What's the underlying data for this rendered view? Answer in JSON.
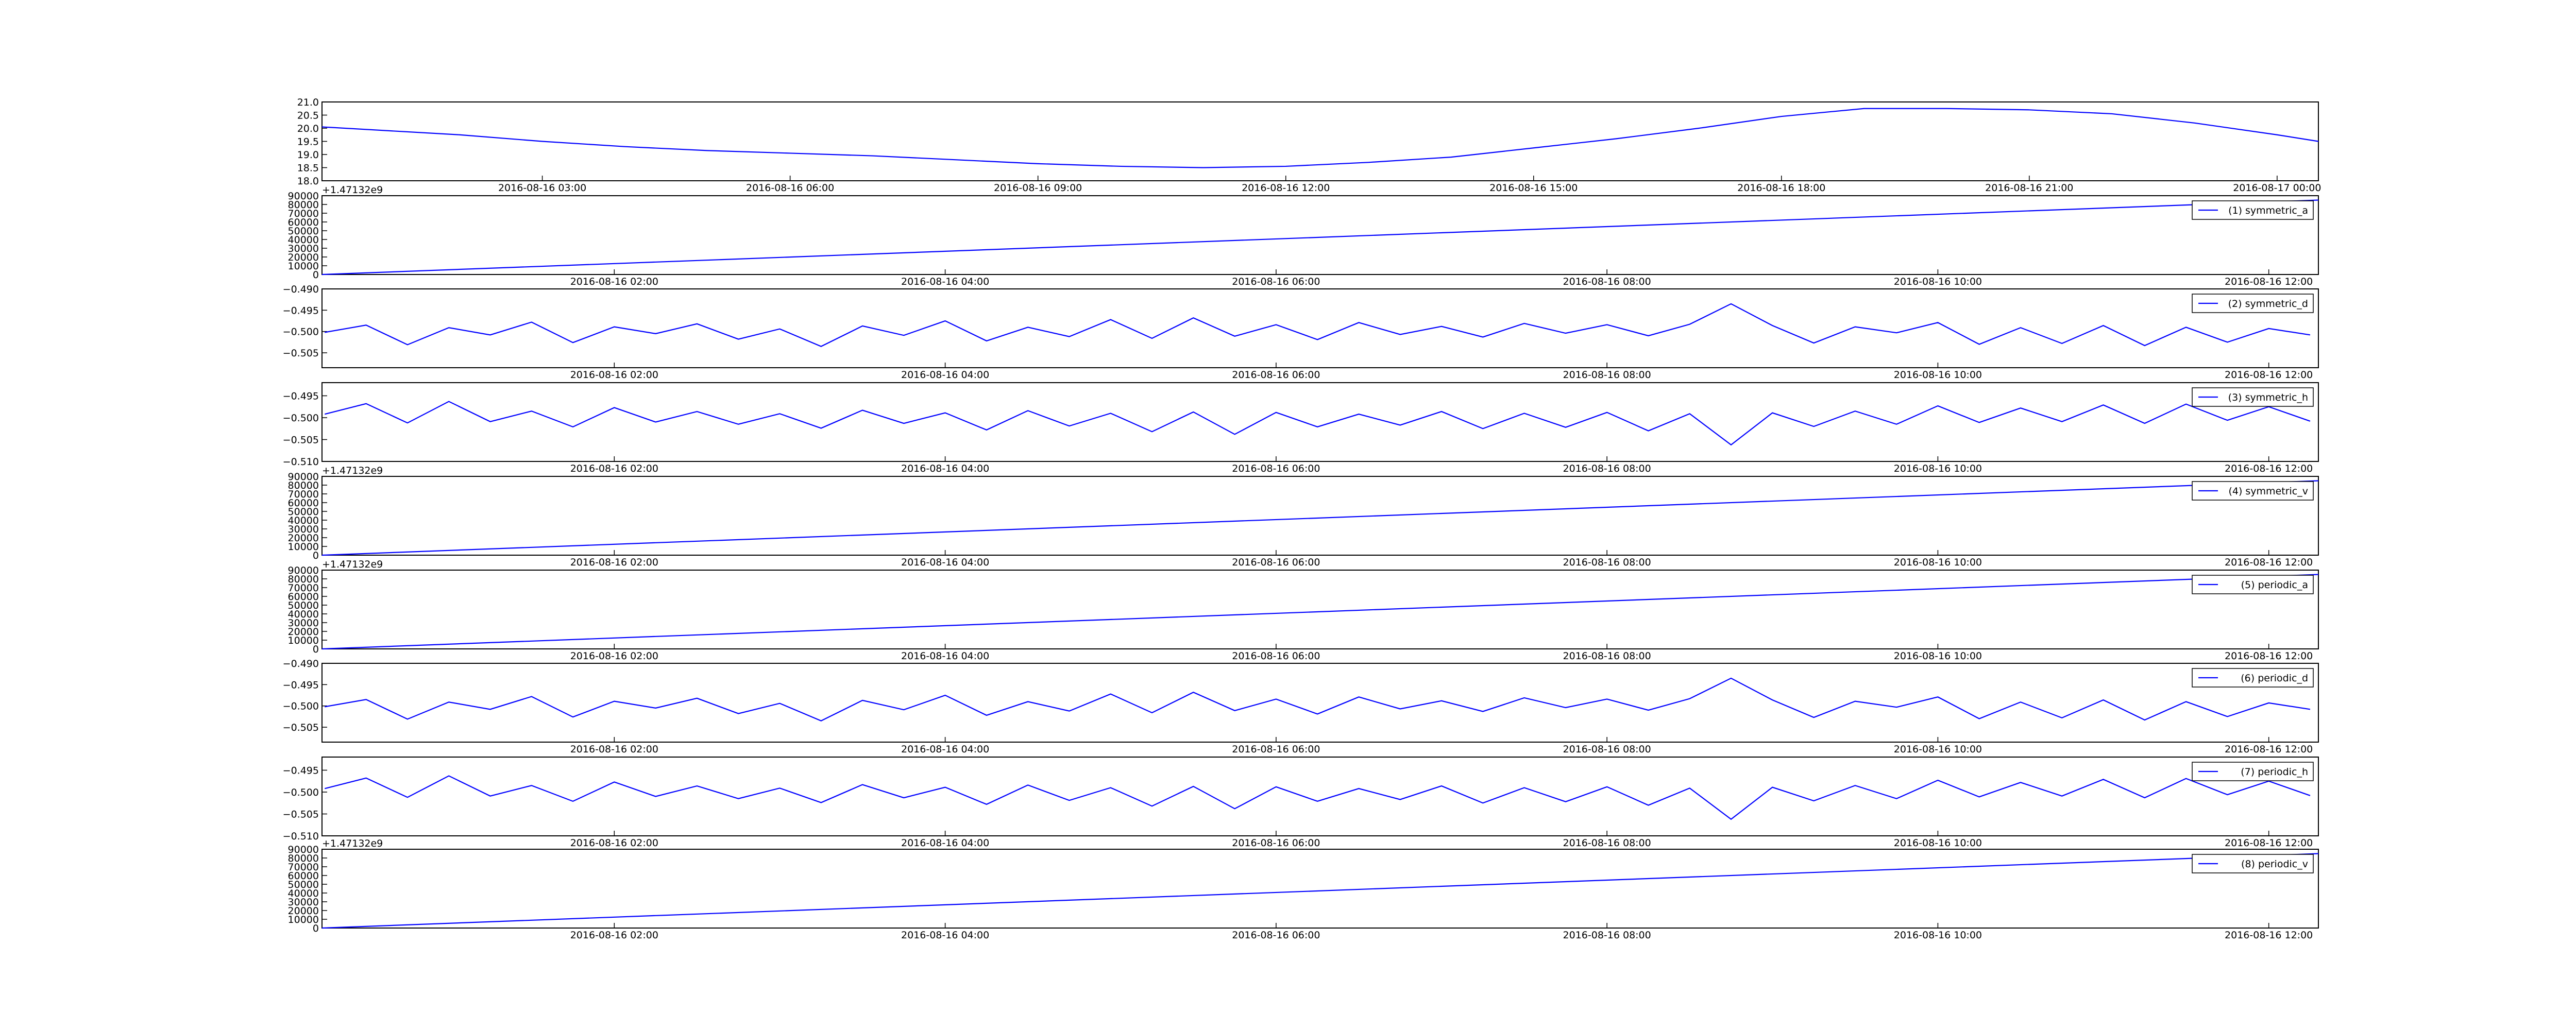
{
  "chart_data": [
    {
      "type": "line",
      "color": "#0000ff",
      "x": [
        "2016-08-16 00:20",
        "2016-08-16 02:00",
        "2016-08-16 03:00",
        "2016-08-16 04:00",
        "2016-08-16 05:00",
        "2016-08-16 06:00",
        "2016-08-16 07:00",
        "2016-08-16 08:00",
        "2016-08-16 09:00",
        "2016-08-16 10:00",
        "2016-08-16 11:00",
        "2016-08-16 12:00",
        "2016-08-16 13:00",
        "2016-08-16 14:00",
        "2016-08-16 15:00",
        "2016-08-16 16:00",
        "2016-08-16 17:00",
        "2016-08-16 18:00",
        "2016-08-16 19:00",
        "2016-08-16 20:00",
        "2016-08-16 21:00",
        "2016-08-16 22:00",
        "2016-08-16 23:00",
        "2016-08-17 00:00",
        "2016-08-17 00:30"
      ],
      "values": [
        20.05,
        19.75,
        19.5,
        19.3,
        19.15,
        19.05,
        18.95,
        18.8,
        18.65,
        18.55,
        18.5,
        18.55,
        18.7,
        18.9,
        19.25,
        19.6,
        20.0,
        20.45,
        20.75,
        20.75,
        20.7,
        20.55,
        20.2,
        19.75,
        19.5
      ],
      "xlim": [
        "2016-08-16 00:20",
        "2016-08-17 00:30"
      ],
      "xticks": [
        "2016-08-16 03:00",
        "2016-08-16 06:00",
        "2016-08-16 09:00",
        "2016-08-16 12:00",
        "2016-08-16 15:00",
        "2016-08-16 18:00",
        "2016-08-16 21:00",
        "2016-08-17 00:00"
      ],
      "ylim": [
        18.0,
        21.0
      ],
      "yticks": [
        {
          "value": 18,
          "label": "18.0"
        },
        {
          "value": 18.5,
          "label": "18.5"
        },
        {
          "value": 19,
          "label": "19.0"
        },
        {
          "value": 19.5,
          "label": "19.5"
        },
        {
          "value": 20,
          "label": "20.0"
        },
        {
          "value": 20.5,
          "label": "20.5"
        },
        {
          "value": 21,
          "label": "21.0"
        }
      ]
    },
    {
      "type": "line",
      "offset_text": "+1.47132e9",
      "legend": "upper right",
      "x": [
        "2016-08-16 00:14",
        "2016-08-16 12:18"
      ],
      "series": [
        {
          "name": "(1) symmetric_a",
          "color": "#0000ff",
          "values": [
            0,
            85000
          ]
        }
      ],
      "xlim": [
        "2016-08-16 00:14",
        "2016-08-16 12:18"
      ],
      "xticks": [
        "2016-08-16 02:00",
        "2016-08-16 04:00",
        "2016-08-16 06:00",
        "2016-08-16 08:00",
        "2016-08-16 10:00",
        "2016-08-16 12:00"
      ],
      "ylim": [
        0,
        90000
      ],
      "yticks": [
        0,
        10000,
        20000,
        30000,
        40000,
        50000,
        60000,
        70000,
        80000,
        90000
      ]
    },
    {
      "type": "line",
      "legend": "upper right",
      "x": [
        "2016-08-16 00:15",
        "2016-08-16 00:30",
        "2016-08-16 00:45",
        "2016-08-16 01:00",
        "2016-08-16 01:15",
        "2016-08-16 01:30",
        "2016-08-16 01:45",
        "2016-08-16 02:00",
        "2016-08-16 02:15",
        "2016-08-16 02:30",
        "2016-08-16 02:45",
        "2016-08-16 03:00",
        "2016-08-16 03:15",
        "2016-08-16 03:30",
        "2016-08-16 03:45",
        "2016-08-16 04:00",
        "2016-08-16 04:15",
        "2016-08-16 04:30",
        "2016-08-16 04:45",
        "2016-08-16 05:00",
        "2016-08-16 05:15",
        "2016-08-16 05:30",
        "2016-08-16 05:45",
        "2016-08-16 06:00",
        "2016-08-16 06:15",
        "2016-08-16 06:30",
        "2016-08-16 06:45",
        "2016-08-16 07:00",
        "2016-08-16 07:15",
        "2016-08-16 07:30",
        "2016-08-16 07:45",
        "2016-08-16 08:00",
        "2016-08-16 08:15",
        "2016-08-16 08:30",
        "2016-08-16 08:45",
        "2016-08-16 09:00",
        "2016-08-16 09:15",
        "2016-08-16 09:30",
        "2016-08-16 09:45",
        "2016-08-16 10:00",
        "2016-08-16 10:15",
        "2016-08-16 10:30",
        "2016-08-16 10:45",
        "2016-08-16 11:00",
        "2016-08-16 11:15",
        "2016-08-16 11:30",
        "2016-08-16 11:45",
        "2016-08-16 12:00",
        "2016-08-16 12:15"
      ],
      "series": [
        {
          "name": "(2) symmetric_d",
          "color": "#0000ff",
          "values": [
            -0.5002,
            -0.4985,
            -0.5031,
            -0.4991,
            -0.5008,
            -0.4978,
            -0.5026,
            -0.4989,
            -0.5005,
            -0.4982,
            -0.5018,
            -0.4994,
            -0.5035,
            -0.4987,
            -0.5009,
            -0.4975,
            -0.5022,
            -0.499,
            -0.5012,
            -0.4972,
            -0.5016,
            -0.4968,
            -0.5011,
            -0.4984,
            -0.5019,
            -0.4979,
            -0.5007,
            -0.4988,
            -0.5013,
            -0.4981,
            -0.5004,
            -0.4984,
            -0.501,
            -0.4983,
            -0.4935,
            -0.4986,
            -0.5027,
            -0.4989,
            -0.5003,
            -0.4979,
            -0.503,
            -0.4991,
            -0.5028,
            -0.4986,
            -0.5033,
            -0.499,
            -0.5025,
            -0.4993,
            -0.5008
          ]
        }
      ],
      "xlim": [
        "2016-08-16 00:14",
        "2016-08-16 12:18"
      ],
      "xticks": [
        "2016-08-16 02:00",
        "2016-08-16 04:00",
        "2016-08-16 06:00",
        "2016-08-16 08:00",
        "2016-08-16 10:00",
        "2016-08-16 12:00"
      ],
      "ylim": [
        -0.5085,
        -0.49
      ],
      "yticks": [
        {
          "value": -0.505,
          "label": "−0.505"
        },
        {
          "value": -0.5,
          "label": "−0.500"
        },
        {
          "value": -0.495,
          "label": "−0.495"
        },
        {
          "value": -0.49,
          "label": "−0.490"
        }
      ]
    },
    {
      "type": "line",
      "legend": "upper right",
      "x": [
        "2016-08-16 00:15",
        "2016-08-16 00:30",
        "2016-08-16 00:45",
        "2016-08-16 01:00",
        "2016-08-16 01:15",
        "2016-08-16 01:30",
        "2016-08-16 01:45",
        "2016-08-16 02:00",
        "2016-08-16 02:15",
        "2016-08-16 02:30",
        "2016-08-16 02:45",
        "2016-08-16 03:00",
        "2016-08-16 03:15",
        "2016-08-16 03:30",
        "2016-08-16 03:45",
        "2016-08-16 04:00",
        "2016-08-16 04:15",
        "2016-08-16 04:30",
        "2016-08-16 04:45",
        "2016-08-16 05:00",
        "2016-08-16 05:15",
        "2016-08-16 05:30",
        "2016-08-16 05:45",
        "2016-08-16 06:00",
        "2016-08-16 06:15",
        "2016-08-16 06:30",
        "2016-08-16 06:45",
        "2016-08-16 07:00",
        "2016-08-16 07:15",
        "2016-08-16 07:30",
        "2016-08-16 07:45",
        "2016-08-16 08:00",
        "2016-08-16 08:15",
        "2016-08-16 08:30",
        "2016-08-16 08:45",
        "2016-08-16 09:00",
        "2016-08-16 09:15",
        "2016-08-16 09:30",
        "2016-08-16 09:45",
        "2016-08-16 10:00",
        "2016-08-16 10:15",
        "2016-08-16 10:30",
        "2016-08-16 10:45",
        "2016-08-16 11:00",
        "2016-08-16 11:15",
        "2016-08-16 11:30",
        "2016-08-16 11:45",
        "2016-08-16 12:00",
        "2016-08-16 12:15"
      ],
      "series": [
        {
          "name": "(3) symmetric_h",
          "color": "#0000ff",
          "values": [
            -0.4992,
            -0.4968,
            -0.5012,
            -0.4963,
            -0.5009,
            -0.4985,
            -0.5021,
            -0.4977,
            -0.501,
            -0.4986,
            -0.5015,
            -0.4991,
            -0.5024,
            -0.4983,
            -0.5013,
            -0.4989,
            -0.5028,
            -0.4984,
            -0.5019,
            -0.499,
            -0.5032,
            -0.4987,
            -0.5038,
            -0.4988,
            -0.5021,
            -0.4992,
            -0.5017,
            -0.4986,
            -0.5025,
            -0.499,
            -0.5022,
            -0.4988,
            -0.503,
            -0.4991,
            -0.5062,
            -0.4989,
            -0.502,
            -0.4985,
            -0.5015,
            -0.4973,
            -0.5011,
            -0.4978,
            -0.5009,
            -0.4971,
            -0.5013,
            -0.4969,
            -0.5006,
            -0.4975,
            -0.5008
          ]
        }
      ],
      "xlim": [
        "2016-08-16 00:14",
        "2016-08-16 12:18"
      ],
      "xticks": [
        "2016-08-16 02:00",
        "2016-08-16 04:00",
        "2016-08-16 06:00",
        "2016-08-16 08:00",
        "2016-08-16 10:00",
        "2016-08-16 12:00"
      ],
      "ylim": [
        -0.51,
        -0.492
      ],
      "yticks": [
        {
          "value": -0.51,
          "label": "−0.510"
        },
        {
          "value": -0.505,
          "label": "−0.505"
        },
        {
          "value": -0.5,
          "label": "−0.500"
        },
        {
          "value": -0.495,
          "label": "−0.495"
        }
      ]
    },
    {
      "type": "line",
      "offset_text": "+1.47132e9",
      "legend": "upper right",
      "x": [
        "2016-08-16 00:14",
        "2016-08-16 12:18"
      ],
      "series": [
        {
          "name": "(4) symmetric_v",
          "color": "#0000ff",
          "values": [
            0,
            85000
          ]
        }
      ],
      "xlim": [
        "2016-08-16 00:14",
        "2016-08-16 12:18"
      ],
      "xticks": [
        "2016-08-16 02:00",
        "2016-08-16 04:00",
        "2016-08-16 06:00",
        "2016-08-16 08:00",
        "2016-08-16 10:00",
        "2016-08-16 12:00"
      ],
      "ylim": [
        0,
        90000
      ],
      "yticks": [
        0,
        10000,
        20000,
        30000,
        40000,
        50000,
        60000,
        70000,
        80000,
        90000
      ]
    },
    {
      "type": "line",
      "offset_text": "+1.47132e9",
      "legend": "upper right",
      "x": [
        "2016-08-16 00:14",
        "2016-08-16 12:18"
      ],
      "series": [
        {
          "name": "(5) periodic_a",
          "color": "#0000ff",
          "values": [
            0,
            85000
          ]
        }
      ],
      "xlim": [
        "2016-08-16 00:14",
        "2016-08-16 12:18"
      ],
      "xticks": [
        "2016-08-16 02:00",
        "2016-08-16 04:00",
        "2016-08-16 06:00",
        "2016-08-16 08:00",
        "2016-08-16 10:00",
        "2016-08-16 12:00"
      ],
      "ylim": [
        0,
        90000
      ],
      "yticks": [
        0,
        10000,
        20000,
        30000,
        40000,
        50000,
        60000,
        70000,
        80000,
        90000
      ]
    },
    {
      "type": "line",
      "legend": "upper right",
      "x": [
        "2016-08-16 00:15",
        "2016-08-16 00:30",
        "2016-08-16 00:45",
        "2016-08-16 01:00",
        "2016-08-16 01:15",
        "2016-08-16 01:30",
        "2016-08-16 01:45",
        "2016-08-16 02:00",
        "2016-08-16 02:15",
        "2016-08-16 02:30",
        "2016-08-16 02:45",
        "2016-08-16 03:00",
        "2016-08-16 03:15",
        "2016-08-16 03:30",
        "2016-08-16 03:45",
        "2016-08-16 04:00",
        "2016-08-16 04:15",
        "2016-08-16 04:30",
        "2016-08-16 04:45",
        "2016-08-16 05:00",
        "2016-08-16 05:15",
        "2016-08-16 05:30",
        "2016-08-16 05:45",
        "2016-08-16 06:00",
        "2016-08-16 06:15",
        "2016-08-16 06:30",
        "2016-08-16 06:45",
        "2016-08-16 07:00",
        "2016-08-16 07:15",
        "2016-08-16 07:30",
        "2016-08-16 07:45",
        "2016-08-16 08:00",
        "2016-08-16 08:15",
        "2016-08-16 08:30",
        "2016-08-16 08:45",
        "2016-08-16 09:00",
        "2016-08-16 09:15",
        "2016-08-16 09:30",
        "2016-08-16 09:45",
        "2016-08-16 10:00",
        "2016-08-16 10:15",
        "2016-08-16 10:30",
        "2016-08-16 10:45",
        "2016-08-16 11:00",
        "2016-08-16 11:15",
        "2016-08-16 11:30",
        "2016-08-16 11:45",
        "2016-08-16 12:00",
        "2016-08-16 12:15"
      ],
      "series": [
        {
          "name": "(6) periodic_d",
          "color": "#0000ff",
          "values": [
            -0.5002,
            -0.4985,
            -0.5031,
            -0.4991,
            -0.5008,
            -0.4978,
            -0.5026,
            -0.4989,
            -0.5005,
            -0.4982,
            -0.5018,
            -0.4994,
            -0.5035,
            -0.4987,
            -0.5009,
            -0.4975,
            -0.5022,
            -0.499,
            -0.5012,
            -0.4972,
            -0.5016,
            -0.4968,
            -0.5011,
            -0.4984,
            -0.5019,
            -0.4979,
            -0.5007,
            -0.4988,
            -0.5013,
            -0.4981,
            -0.5004,
            -0.4984,
            -0.501,
            -0.4983,
            -0.4935,
            -0.4986,
            -0.5027,
            -0.4989,
            -0.5003,
            -0.4979,
            -0.503,
            -0.4991,
            -0.5028,
            -0.4986,
            -0.5033,
            -0.499,
            -0.5025,
            -0.4993,
            -0.5008
          ]
        }
      ],
      "xlim": [
        "2016-08-16 00:14",
        "2016-08-16 12:18"
      ],
      "xticks": [
        "2016-08-16 02:00",
        "2016-08-16 04:00",
        "2016-08-16 06:00",
        "2016-08-16 08:00",
        "2016-08-16 10:00",
        "2016-08-16 12:00"
      ],
      "ylim": [
        -0.5085,
        -0.49
      ],
      "yticks": [
        {
          "value": -0.505,
          "label": "−0.505"
        },
        {
          "value": -0.5,
          "label": "−0.500"
        },
        {
          "value": -0.495,
          "label": "−0.495"
        },
        {
          "value": -0.49,
          "label": "−0.490"
        }
      ]
    },
    {
      "type": "line",
      "legend": "upper right",
      "x": [
        "2016-08-16 00:15",
        "2016-08-16 00:30",
        "2016-08-16 00:45",
        "2016-08-16 01:00",
        "2016-08-16 01:15",
        "2016-08-16 01:30",
        "2016-08-16 01:45",
        "2016-08-16 02:00",
        "2016-08-16 02:15",
        "2016-08-16 02:30",
        "2016-08-16 02:45",
        "2016-08-16 03:00",
        "2016-08-16 03:15",
        "2016-08-16 03:30",
        "2016-08-16 03:45",
        "2016-08-16 04:00",
        "2016-08-16 04:15",
        "2016-08-16 04:30",
        "2016-08-16 04:45",
        "2016-08-16 05:00",
        "2016-08-16 05:15",
        "2016-08-16 05:30",
        "2016-08-16 05:45",
        "2016-08-16 06:00",
        "2016-08-16 06:15",
        "2016-08-16 06:30",
        "2016-08-16 06:45",
        "2016-08-16 07:00",
        "2016-08-16 07:15",
        "2016-08-16 07:30",
        "2016-08-16 07:45",
        "2016-08-16 08:00",
        "2016-08-16 08:15",
        "2016-08-16 08:30",
        "2016-08-16 08:45",
        "2016-08-16 09:00",
        "2016-08-16 09:15",
        "2016-08-16 09:30",
        "2016-08-16 09:45",
        "2016-08-16 10:00",
        "2016-08-16 10:15",
        "2016-08-16 10:30",
        "2016-08-16 10:45",
        "2016-08-16 11:00",
        "2016-08-16 11:15",
        "2016-08-16 11:30",
        "2016-08-16 11:45",
        "2016-08-16 12:00",
        "2016-08-16 12:15"
      ],
      "series": [
        {
          "name": "(7) periodic_h",
          "color": "#0000ff",
          "values": [
            -0.4992,
            -0.4968,
            -0.5012,
            -0.4963,
            -0.5009,
            -0.4985,
            -0.5021,
            -0.4977,
            -0.501,
            -0.4986,
            -0.5015,
            -0.4991,
            -0.5024,
            -0.4983,
            -0.5013,
            -0.4989,
            -0.5028,
            -0.4984,
            -0.5019,
            -0.499,
            -0.5032,
            -0.4987,
            -0.5038,
            -0.4988,
            -0.5021,
            -0.4992,
            -0.5017,
            -0.4986,
            -0.5025,
            -0.499,
            -0.5022,
            -0.4988,
            -0.503,
            -0.4991,
            -0.5062,
            -0.4989,
            -0.502,
            -0.4985,
            -0.5015,
            -0.4973,
            -0.5011,
            -0.4978,
            -0.5009,
            -0.4971,
            -0.5013,
            -0.4969,
            -0.5006,
            -0.4975,
            -0.5008
          ]
        }
      ],
      "xlim": [
        "2016-08-16 00:14",
        "2016-08-16 12:18"
      ],
      "xticks": [
        "2016-08-16 02:00",
        "2016-08-16 04:00",
        "2016-08-16 06:00",
        "2016-08-16 08:00",
        "2016-08-16 10:00",
        "2016-08-16 12:00"
      ],
      "ylim": [
        -0.51,
        -0.492
      ],
      "yticks": [
        {
          "value": -0.51,
          "label": "−0.510"
        },
        {
          "value": -0.505,
          "label": "−0.505"
        },
        {
          "value": -0.5,
          "label": "−0.500"
        },
        {
          "value": -0.495,
          "label": "−0.495"
        }
      ]
    },
    {
      "type": "line",
      "offset_text": "+1.47132e9",
      "legend": "upper right",
      "x": [
        "2016-08-16 00:14",
        "2016-08-16 12:18"
      ],
      "series": [
        {
          "name": "(8) periodic_v",
          "color": "#0000ff",
          "values": [
            0,
            85000
          ]
        }
      ],
      "xlim": [
        "2016-08-16 00:14",
        "2016-08-16 12:18"
      ],
      "xticks": [
        "2016-08-16 02:00",
        "2016-08-16 04:00",
        "2016-08-16 06:00",
        "2016-08-16 08:00",
        "2016-08-16 10:00",
        "2016-08-16 12:00"
      ],
      "ylim": [
        0,
        90000
      ],
      "yticks": [
        0,
        10000,
        20000,
        30000,
        40000,
        50000,
        60000,
        70000,
        80000,
        90000
      ]
    }
  ]
}
